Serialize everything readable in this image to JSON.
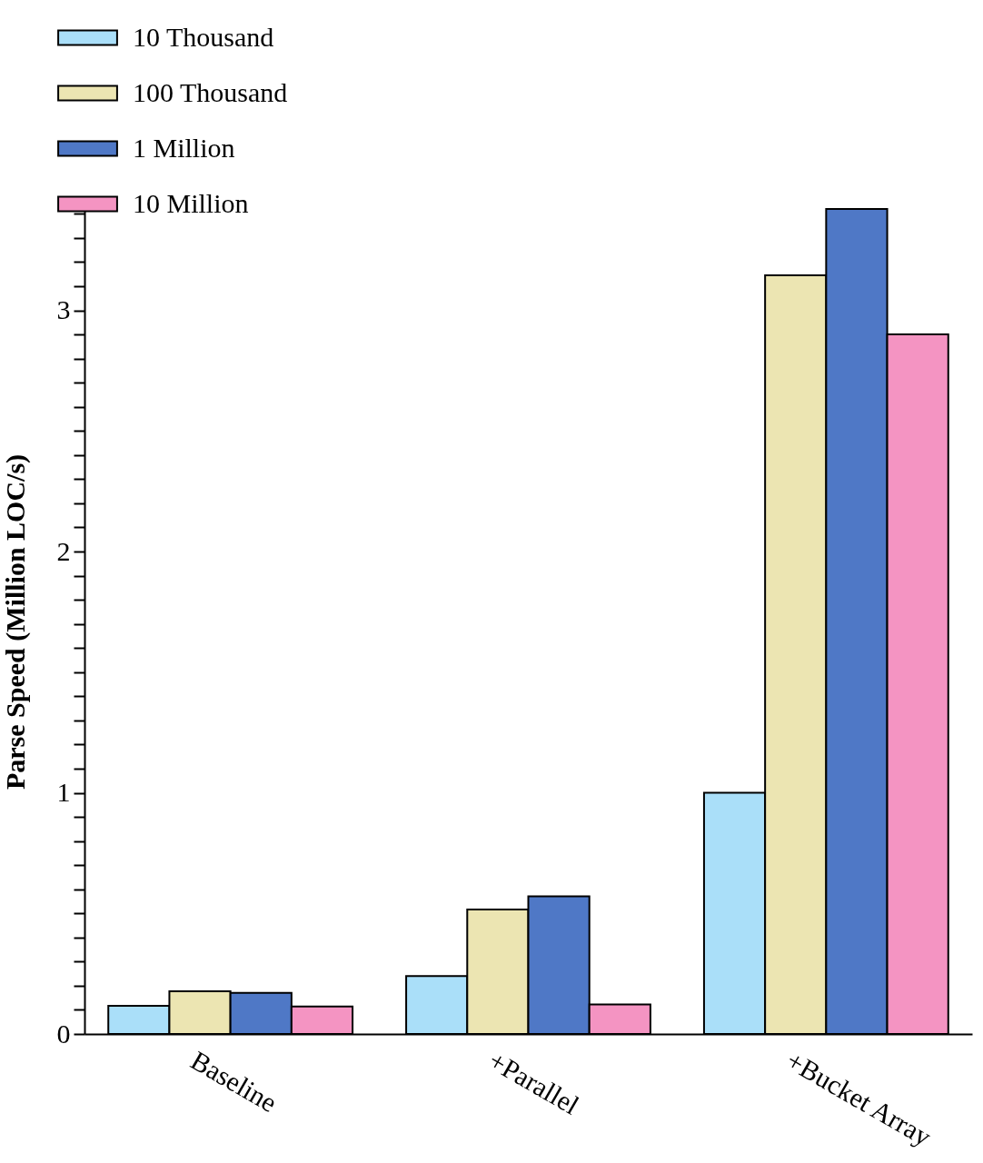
{
  "chart_data": {
    "type": "bar",
    "ylabel": "Parse Speed (Million LOC/s)",
    "categories": [
      "Baseline",
      "+Parallel",
      "+Bucket Array"
    ],
    "series": [
      {
        "name": "10 Thousand",
        "color": "#aadff9",
        "values": [
          0.117,
          0.24,
          1.0
        ]
      },
      {
        "name": "100 Thousand",
        "color": "#ece5b2",
        "values": [
          0.177,
          0.516,
          3.145
        ]
      },
      {
        "name": "1 Million",
        "color": "#4f78c6",
        "values": [
          0.17,
          0.571,
          3.42
        ]
      },
      {
        "name": "10 Million",
        "color": "#f494c2",
        "values": [
          0.114,
          0.122,
          2.9
        ]
      }
    ],
    "ylim": [
      0,
      3.42
    ],
    "yticks": [
      0,
      {
        "value": 0.1,
        "label": null
      },
      {
        "value": 0.2,
        "label": null
      },
      {
        "value": 0.3,
        "label": null
      },
      {
        "value": 0.4,
        "label": null
      },
      {
        "value": 0.5,
        "label": null
      },
      {
        "value": 0.6,
        "label": null
      },
      {
        "value": 0.7,
        "label": null
      },
      {
        "value": 0.8,
        "label": null
      },
      {
        "value": 0.9,
        "label": null
      },
      1,
      {
        "value": 1.1,
        "label": null
      },
      {
        "value": 1.2,
        "label": null
      },
      {
        "value": 1.3,
        "label": null
      },
      {
        "value": 1.4,
        "label": null
      },
      {
        "value": 1.5,
        "label": null
      },
      {
        "value": 1.6,
        "label": null
      },
      {
        "value": 1.7,
        "label": null
      },
      {
        "value": 1.8,
        "label": null
      },
      {
        "value": 1.9,
        "label": null
      },
      2,
      {
        "value": 2.1,
        "label": null
      },
      {
        "value": 2.2,
        "label": null
      },
      {
        "value": 2.3,
        "label": null
      },
      {
        "value": 2.4,
        "label": null
      },
      {
        "value": 2.5,
        "label": null
      },
      {
        "value": 2.6,
        "label": null
      },
      {
        "value": 2.7,
        "label": null
      },
      {
        "value": 2.8,
        "label": null
      },
      {
        "value": 2.9,
        "label": null
      },
      3,
      {
        "value": 3.1,
        "label": null
      },
      {
        "value": 3.2,
        "label": null
      },
      {
        "value": 3.3,
        "label": null
      },
      {
        "value": 3.4,
        "label": null
      }
    ],
    "grid": false,
    "legend": "top left"
  }
}
